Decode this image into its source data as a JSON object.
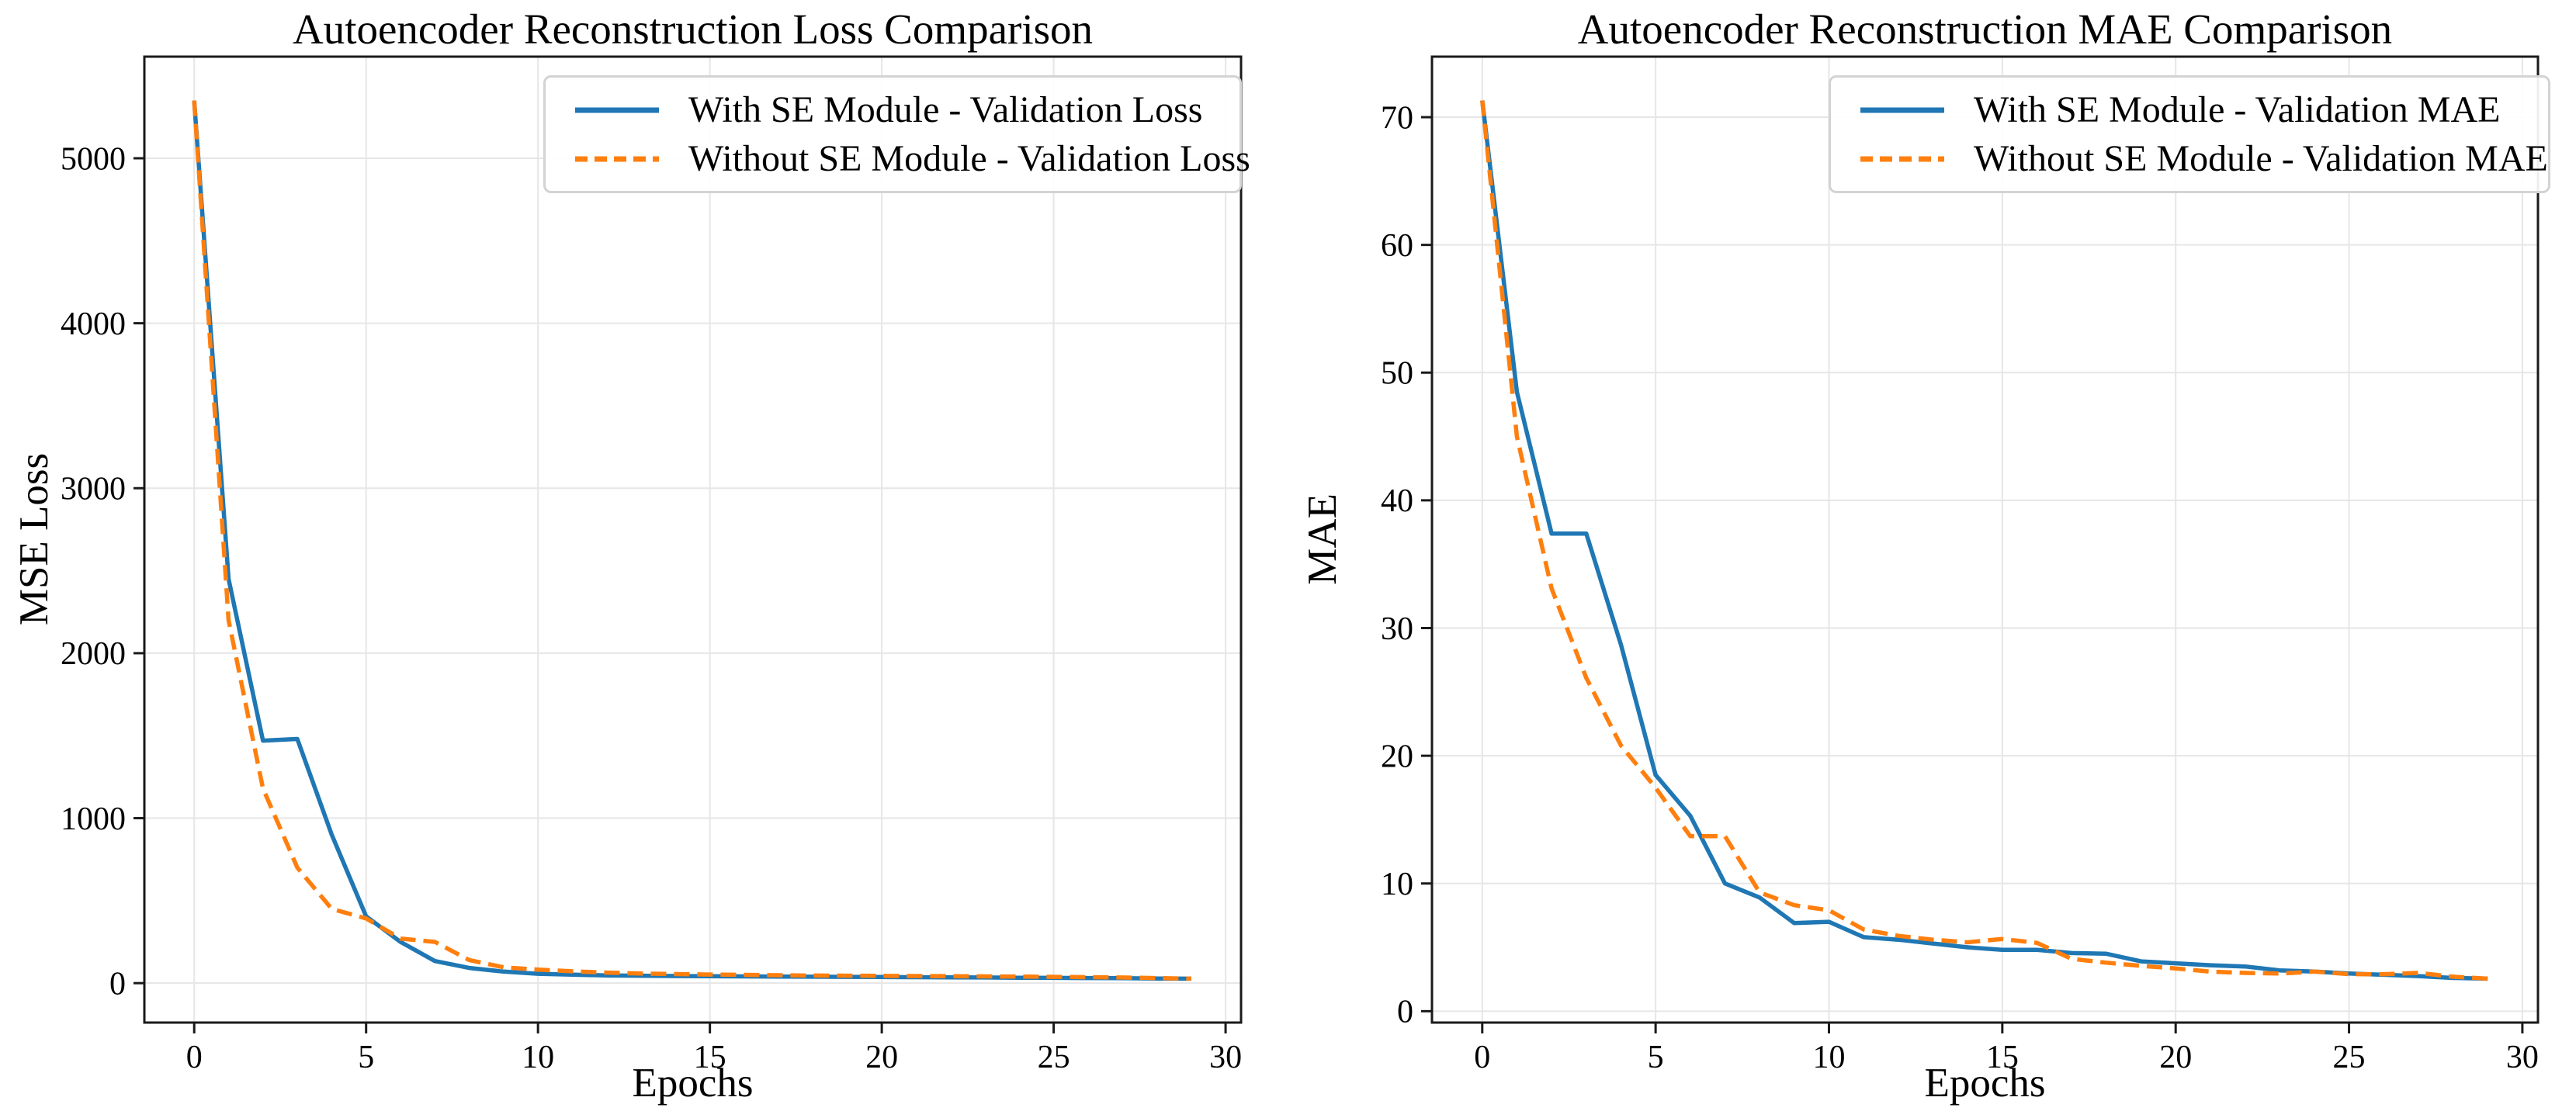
{
  "figure": {
    "background": "#ffffff",
    "grid_color": "#e6e6e6",
    "spine_color": "#1a1a1a",
    "tick_color": "#1a1a1a"
  },
  "chart_data": [
    {
      "type": "line",
      "title": "Autoencoder Reconstruction Loss Comparison",
      "xlabel": "Epochs",
      "ylabel": "MSE Loss",
      "x": [
        0,
        1,
        2,
        3,
        4,
        5,
        6,
        7,
        8,
        9,
        10,
        11,
        12,
        13,
        14,
        15,
        16,
        17,
        18,
        19,
        20,
        21,
        22,
        23,
        24,
        25,
        26,
        27,
        28,
        29
      ],
      "series": [
        {
          "name": "With SE Module - Validation Loss",
          "color": "#1f77b4",
          "line_style": "solid",
          "values": [
            5350,
            2450,
            1470,
            1480,
            900,
            405,
            250,
            134,
            92,
            70,
            57,
            51,
            47,
            45,
            43,
            42,
            41,
            40,
            39,
            38,
            37,
            36,
            35,
            34,
            33,
            32,
            31,
            30,
            28,
            27
          ]
        },
        {
          "name": "Without SE Module - Validation Loss",
          "color": "#ff7f0e",
          "line_style": "dashed",
          "values": [
            5350,
            2200,
            1180,
            700,
            450,
            392,
            270,
            250,
            140,
            96,
            82,
            72,
            64,
            58,
            55,
            52,
            50,
            48,
            46,
            45,
            44,
            43,
            42,
            41,
            40,
            38,
            36,
            34,
            31,
            27
          ]
        }
      ],
      "xticks": [
        0,
        5,
        10,
        15,
        20,
        25,
        30
      ],
      "yticks": [
        0,
        1000,
        2000,
        3000,
        4000,
        5000
      ],
      "xlim": [
        -1.45,
        30.45
      ],
      "ylim": [
        -239,
        5616
      ],
      "grid": true,
      "legend_position": "upper right"
    },
    {
      "type": "line",
      "title": "Autoencoder Reconstruction MAE Comparison",
      "xlabel": "Epochs",
      "ylabel": "MAE",
      "x": [
        0,
        1,
        2,
        3,
        4,
        5,
        6,
        7,
        8,
        9,
        10,
        11,
        12,
        13,
        14,
        15,
        16,
        17,
        18,
        19,
        20,
        21,
        22,
        23,
        24,
        25,
        26,
        27,
        28,
        29
      ],
      "series": [
        {
          "name": "With SE Module - Validation MAE",
          "color": "#1f77b4",
          "line_style": "solid",
          "values": [
            71.3,
            48.5,
            37.4,
            37.4,
            28.7,
            18.5,
            15.3,
            10.0,
            8.9,
            6.9,
            7.0,
            5.8,
            5.6,
            5.3,
            5.0,
            4.8,
            4.8,
            4.55,
            4.5,
            3.9,
            3.75,
            3.6,
            3.5,
            3.2,
            3.1,
            2.95,
            2.85,
            2.75,
            2.6,
            2.55
          ]
        },
        {
          "name": "Without SE Module - Validation MAE",
          "color": "#ff7f0e",
          "line_style": "dashed",
          "values": [
            71.3,
            45.0,
            33.1,
            26.1,
            20.8,
            17.5,
            13.7,
            13.7,
            9.3,
            8.3,
            7.9,
            6.4,
            5.9,
            5.6,
            5.4,
            5.65,
            5.35,
            4.1,
            3.8,
            3.55,
            3.35,
            3.1,
            3.0,
            2.95,
            3.1,
            2.9,
            2.9,
            3.0,
            2.7,
            2.55
          ]
        }
      ],
      "xticks": [
        0,
        5,
        10,
        15,
        20,
        25,
        30
      ],
      "yticks": [
        0,
        10,
        20,
        30,
        40,
        50,
        60,
        70
      ],
      "xlim": [
        -1.45,
        30.45
      ],
      "ylim": [
        -0.89,
        74.74
      ],
      "grid": true,
      "legend_position": "upper right"
    }
  ]
}
